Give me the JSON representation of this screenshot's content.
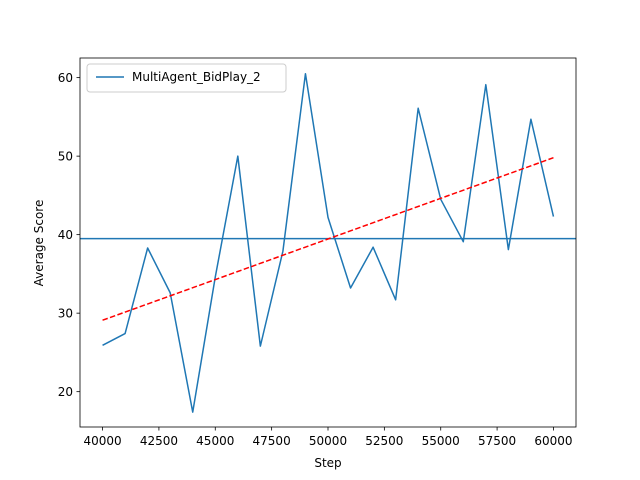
{
  "chart_data": {
    "type": "line",
    "title": "",
    "xlabel": "Step",
    "ylabel": "Average Score",
    "xlim": [
      39000,
      61000
    ],
    "ylim": [
      15.5,
      62.5
    ],
    "xticks": [
      40000,
      42500,
      45000,
      47500,
      50000,
      52500,
      55000,
      57500,
      60000
    ],
    "yticks": [
      20,
      30,
      40,
      50,
      60
    ],
    "grid": false,
    "legend_position": "top-left",
    "series": [
      {
        "name": "MultiAgent_BidPlay_2",
        "color": "#1f77b4",
        "x": [
          40000,
          41000,
          42000,
          43000,
          44000,
          45000,
          46000,
          47000,
          48000,
          49000,
          50000,
          51000,
          52000,
          53000,
          54000,
          55000,
          56000,
          57000,
          58000,
          59000,
          60000
        ],
        "y": [
          25.9,
          27.4,
          38.3,
          32.6,
          17.4,
          34.6,
          50.0,
          25.8,
          37.9,
          60.5,
          42.2,
          33.2,
          38.4,
          31.7,
          56.1,
          44.5,
          39.1,
          59.1,
          38.1,
          54.7,
          42.3
        ]
      }
    ],
    "mean_line": {
      "y": 39.5,
      "color": "#1f77b4"
    },
    "trend_line": {
      "x": [
        40000,
        60000
      ],
      "y": [
        29.1,
        49.8
      ],
      "color": "#ff0000",
      "style": "dashed"
    }
  }
}
